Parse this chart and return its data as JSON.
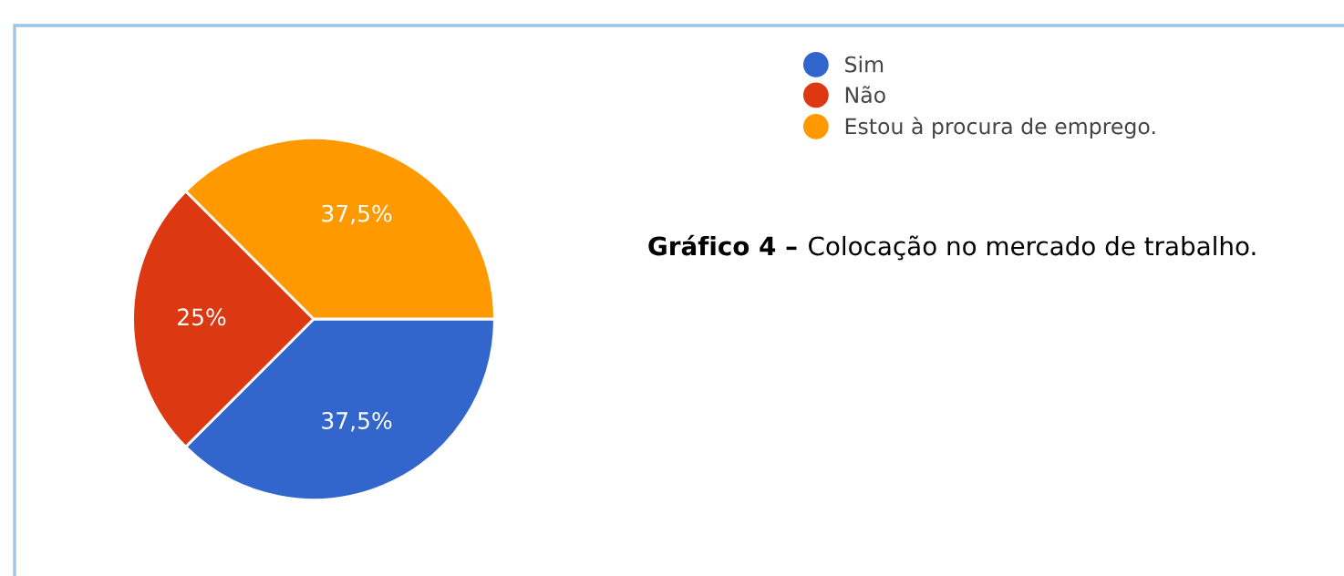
{
  "chart_data": {
    "type": "pie",
    "categories": [
      "Sim",
      "Não",
      "Estou à procura de emprego."
    ],
    "values": [
      37.5,
      25,
      37.5
    ],
    "value_labels": [
      "37,5%",
      "25%",
      "37,5%"
    ],
    "colors": [
      "#3366cc",
      "#dc3912",
      "#ff9900"
    ],
    "legend": "top right",
    "annotations": [
      "Gráfico 4 –",
      "Colocação no mercado de trabalho."
    ]
  }
}
